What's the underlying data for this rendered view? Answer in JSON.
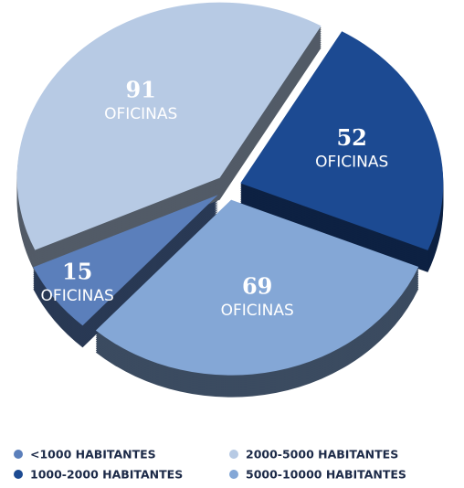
{
  "chart_data": {
    "type": "pie",
    "categories": [
      "<1000 HABITANTES",
      "1000-2000 HABITANTES",
      "2000-5000 HABITANTES",
      "5000-10000 HABITANTES"
    ],
    "values": [
      15,
      52,
      91,
      69
    ],
    "colors": [
      "#5b7fbb",
      "#1c4a92",
      "#b7cae4",
      "#84a7d6"
    ],
    "slice_label": "OFICINAS",
    "legend": "bottom"
  }
}
